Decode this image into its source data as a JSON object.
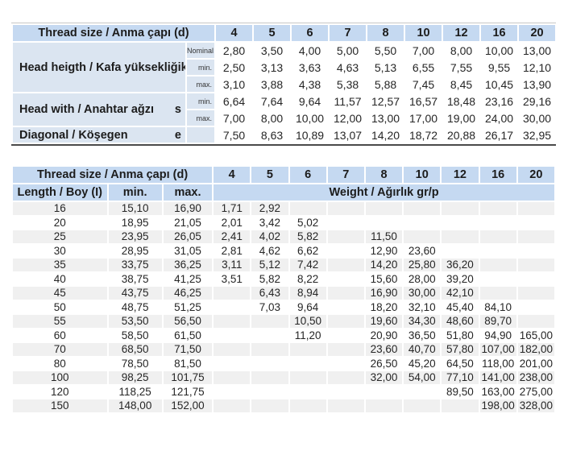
{
  "colors": {
    "header_blue": "#c5d9f1",
    "label_blue": "#dbe5f1",
    "stripe_gray": "#f0f0f0",
    "dark_rule": "#4a4a4a",
    "page_bg": "#ffffff"
  },
  "table1": {
    "corner_label": "Thread size / Anma çapı (d)",
    "diameters": [
      "4",
      "5",
      "6",
      "7",
      "8",
      "10",
      "12",
      "16",
      "20"
    ],
    "row_groups": [
      {
        "label": "Head heigth / Kafa yüksekliği",
        "symbol": "k",
        "rows": [
          {
            "sublabel": "Nominal",
            "values": [
              "2,80",
              "3,50",
              "4,00",
              "5,00",
              "5,50",
              "7,00",
              "8,00",
              "10,00",
              "13,00"
            ]
          },
          {
            "sublabel": "min.",
            "values": [
              "2,50",
              "3,13",
              "3,63",
              "4,63",
              "5,13",
              "6,55",
              "7,55",
              "9,55",
              "12,10"
            ]
          },
          {
            "sublabel": "max.",
            "values": [
              "3,10",
              "3,88",
              "4,38",
              "5,38",
              "5,88",
              "7,45",
              "8,45",
              "10,45",
              "13,90"
            ]
          }
        ]
      },
      {
        "label": "Head with / Anahtar ağzı",
        "symbol": "s",
        "rows": [
          {
            "sublabel": "min.",
            "values": [
              "6,64",
              "7,64",
              "9,64",
              "11,57",
              "12,57",
              "16,57",
              "18,48",
              "23,16",
              "29,16"
            ]
          },
          {
            "sublabel": "max.",
            "values": [
              "7,00",
              "8,00",
              "10,00",
              "12,00",
              "13,00",
              "17,00",
              "19,00",
              "24,00",
              "30,00"
            ]
          }
        ]
      },
      {
        "label": "Diagonal / Köşegen",
        "symbol": "e",
        "rows": [
          {
            "sublabel": "",
            "values": [
              "7,50",
              "8,63",
              "10,89",
              "13,07",
              "14,20",
              "18,72",
              "20,88",
              "26,17",
              "32,95"
            ]
          }
        ]
      }
    ]
  },
  "table2": {
    "corner_label": "Thread size / Anma çapı (d)",
    "diameters": [
      "4",
      "5",
      "6",
      "7",
      "8",
      "10",
      "12",
      "16",
      "20"
    ],
    "length_header": "Length / Boy (I)",
    "min_header": "min.",
    "max_header": "max.",
    "weight_header": "Weight / Ağırlık gr/p",
    "rows": [
      {
        "length": "16",
        "min": "15,10",
        "max": "16,90",
        "weights": [
          "1,71",
          "2,92",
          "",
          "",
          "",
          "",
          "",
          "",
          ""
        ]
      },
      {
        "length": "20",
        "min": "18,95",
        "max": "21,05",
        "weights": [
          "2,01",
          "3,42",
          "5,02",
          "",
          "",
          "",
          "",
          "",
          ""
        ]
      },
      {
        "length": "25",
        "min": "23,95",
        "max": "26,05",
        "weights": [
          "2,41",
          "4,02",
          "5,82",
          "",
          "11,50",
          "",
          "",
          "",
          ""
        ]
      },
      {
        "length": "30",
        "min": "28,95",
        "max": "31,05",
        "weights": [
          "2,81",
          "4,62",
          "6,62",
          "",
          "12,90",
          "23,60",
          "",
          "",
          ""
        ]
      },
      {
        "length": "35",
        "min": "33,75",
        "max": "36,25",
        "weights": [
          "3,11",
          "5,12",
          "7,42",
          "",
          "14,20",
          "25,80",
          "36,20",
          "",
          ""
        ]
      },
      {
        "length": "40",
        "min": "38,75",
        "max": "41,25",
        "weights": [
          "3,51",
          "5,82",
          "8,22",
          "",
          "15,60",
          "28,00",
          "39,20",
          "",
          ""
        ]
      },
      {
        "length": "45",
        "min": "43,75",
        "max": "46,25",
        "weights": [
          "",
          "6,43",
          "8,94",
          "",
          "16,90",
          "30,00",
          "42,10",
          "",
          ""
        ]
      },
      {
        "length": "50",
        "min": "48,75",
        "max": "51,25",
        "weights": [
          "",
          "7,03",
          "9,64",
          "",
          "18,20",
          "32,10",
          "45,40",
          "84,10",
          ""
        ]
      },
      {
        "length": "55",
        "min": "53,50",
        "max": "56,50",
        "weights": [
          "",
          "",
          "10,50",
          "",
          "19,60",
          "34,30",
          "48,60",
          "89,70",
          ""
        ]
      },
      {
        "length": "60",
        "min": "58,50",
        "max": "61,50",
        "weights": [
          "",
          "",
          "11,20",
          "",
          "20,90",
          "36,50",
          "51,80",
          "94,90",
          "165,00"
        ]
      },
      {
        "length": "70",
        "min": "68,50",
        "max": "71,50",
        "weights": [
          "",
          "",
          "",
          "",
          "23,60",
          "40,70",
          "57,80",
          "107,00",
          "182,00"
        ]
      },
      {
        "length": "80",
        "min": "78,50",
        "max": "81,50",
        "weights": [
          "",
          "",
          "",
          "",
          "26,50",
          "45,20",
          "64,50",
          "118,00",
          "201,00"
        ]
      },
      {
        "length": "100",
        "min": "98,25",
        "max": "101,75",
        "weights": [
          "",
          "",
          "",
          "",
          "32,00",
          "54,00",
          "77,10",
          "141,00",
          "238,00"
        ]
      },
      {
        "length": "120",
        "min": "118,25",
        "max": "121,75",
        "weights": [
          "",
          "",
          "",
          "",
          "",
          "",
          "89,50",
          "163,00",
          "275,00"
        ]
      },
      {
        "length": "150",
        "min": "148,00",
        "max": "152,00",
        "weights": [
          "",
          "",
          "",
          "",
          "",
          "",
          "",
          "198,00",
          "328,00"
        ]
      }
    ]
  }
}
